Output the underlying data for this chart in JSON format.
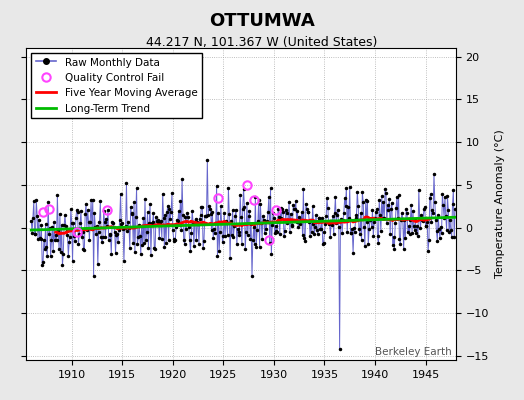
{
  "title": "OTTUMWA",
  "subtitle": "44.217 N, 101.367 W (United States)",
  "right_ylabel": "Temperature Anomaly (°C)",
  "credit": "Berkeley Earth",
  "xlim": [
    1905.5,
    1948.0
  ],
  "ylim": [
    -15.5,
    21.0
  ],
  "yticks": [
    -15,
    -10,
    -5,
    0,
    5,
    10,
    15,
    20
  ],
  "xticks": [
    1910,
    1915,
    1920,
    1925,
    1930,
    1935,
    1940,
    1945
  ],
  "background_color": "#e8e8e8",
  "plot_bg_color": "#ffffff",
  "raw_line_color": "#6666cc",
  "raw_dot_color": "#000000",
  "moving_avg_color": "#ff0000",
  "trend_color": "#00bb00",
  "qc_fail_color": "#ff44ff",
  "seed": 42
}
